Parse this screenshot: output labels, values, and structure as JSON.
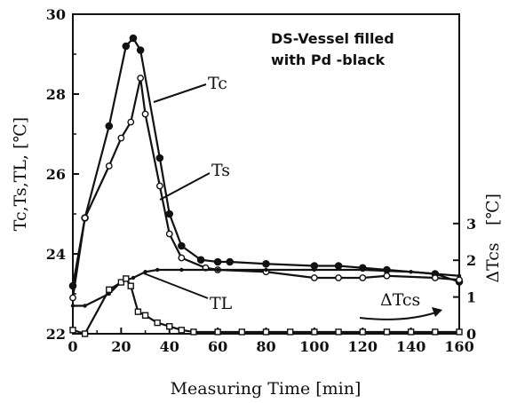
{
  "chart_data": {
    "type": "line",
    "annotation": [
      "DS-Vessel filled",
      "with Pd -black"
    ],
    "xlabel": "Measuring Time   [min]",
    "ylabel_left": "Tc,Ts,TL,  [℃]",
    "ylabel_right_symbol": "ΔTcs",
    "ylabel_right_unit": "[℃]",
    "x_ticks": [
      "0",
      "20",
      "40",
      "60",
      "80",
      "100",
      "120",
      "140",
      "160"
    ],
    "y_ticks_left": [
      "22",
      "24",
      "26",
      "28",
      "30"
    ],
    "y_ticks_right": [
      "0",
      "1",
      "2",
      "3"
    ],
    "xlim": [
      0,
      160
    ],
    "ylim_left": [
      22,
      30
    ],
    "ylim_right": [
      0,
      3
    ],
    "series": [
      {
        "name": "Tc",
        "axis": "left",
        "marker": "filled-circle",
        "x": [
          0,
          5,
          15,
          22,
          25,
          28,
          36,
          40,
          45,
          53,
          60,
          65,
          80,
          100,
          110,
          120,
          130,
          150,
          160
        ],
        "y": [
          23.2,
          24.9,
          27.2,
          29.2,
          29.4,
          29.1,
          26.4,
          25.0,
          24.2,
          23.85,
          23.8,
          23.8,
          23.75,
          23.7,
          23.7,
          23.65,
          23.6,
          23.5,
          23.3
        ]
      },
      {
        "name": "Ts",
        "axis": "left",
        "marker": "open-circle",
        "x": [
          0,
          5,
          15,
          20,
          24,
          28,
          30,
          36,
          40,
          45,
          55,
          60,
          80,
          100,
          110,
          120,
          130,
          150,
          160
        ],
        "y": [
          22.9,
          24.9,
          26.2,
          26.9,
          27.3,
          28.4,
          27.5,
          25.7,
          24.5,
          23.9,
          23.65,
          23.6,
          23.55,
          23.4,
          23.4,
          23.4,
          23.45,
          23.4,
          23.35
        ]
      },
      {
        "name": "TL",
        "axis": "left",
        "marker": "small-dot",
        "x": [
          0,
          5,
          15,
          20,
          25,
          30,
          35,
          45,
          60,
          80,
          100,
          120,
          140,
          150,
          160
        ],
        "y": [
          22.7,
          22.7,
          23.0,
          23.3,
          23.4,
          23.55,
          23.6,
          23.6,
          23.6,
          23.6,
          23.6,
          23.6,
          23.55,
          23.5,
          23.45
        ]
      },
      {
        "name": "ΔTcs",
        "axis": "right",
        "marker": "open-square",
        "x": [
          0,
          5,
          15,
          20,
          22,
          24,
          27,
          30,
          35,
          40,
          45,
          50,
          60,
          70,
          80,
          90,
          100,
          110,
          120,
          130,
          140,
          150,
          160
        ],
        "y": [
          0.1,
          0.0,
          1.2,
          1.4,
          1.5,
          1.3,
          0.6,
          0.5,
          0.3,
          0.2,
          0.1,
          0.05,
          0.05,
          0.05,
          0.05,
          0.05,
          0.05,
          0.05,
          0.05,
          0.05,
          0.05,
          0.05,
          0.05
        ]
      }
    ],
    "series_labels": [
      "Tc",
      "Ts",
      "TL",
      "ΔTcs"
    ]
  }
}
